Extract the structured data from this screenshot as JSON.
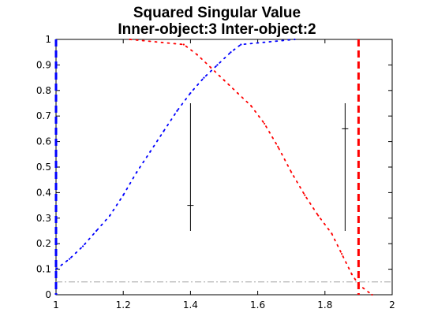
{
  "chart_data": {
    "type": "scatter",
    "title_lines": [
      "Squared Singular Value",
      "Inner-object:3  Inter-object:2"
    ],
    "xlabel": "",
    "ylabel": "",
    "xlim": [
      1,
      2
    ],
    "ylim": [
      0,
      1
    ],
    "x_ticks": [
      1,
      1.2,
      1.4,
      1.6,
      1.8,
      2
    ],
    "x_tick_labels": [
      "1",
      "1.2",
      "1.4",
      "1.6",
      "1.8",
      "2"
    ],
    "y_ticks": [
      0,
      0.1,
      0.2,
      0.3,
      0.4,
      0.5,
      0.6,
      0.7,
      0.8,
      0.9,
      1
    ],
    "y_tick_labels": [
      "0",
      "0.1",
      "0.2",
      "0.3",
      "0.4",
      "0.5",
      "0.6",
      "0.7",
      "0.8",
      "0.9",
      "1"
    ],
    "grid": false,
    "series": [
      {
        "color": "#0000ff",
        "style": "dotted",
        "points": [
          [
            1.0,
            0.1
          ],
          [
            1.04,
            0.14
          ],
          [
            1.08,
            0.19
          ],
          [
            1.12,
            0.25
          ],
          [
            1.16,
            0.31
          ],
          [
            1.2,
            0.39
          ],
          [
            1.24,
            0.48
          ],
          [
            1.28,
            0.56
          ],
          [
            1.32,
            0.64
          ],
          [
            1.36,
            0.72
          ],
          [
            1.4,
            0.79
          ],
          [
            1.44,
            0.85
          ],
          [
            1.48,
            0.9
          ],
          [
            1.52,
            0.95
          ],
          [
            1.55,
            0.98
          ],
          [
            1.71,
            1.0
          ]
        ]
      },
      {
        "color": "#ff0000",
        "style": "dotted",
        "points": [
          [
            1.22,
            1.0
          ],
          [
            1.38,
            0.98
          ],
          [
            1.42,
            0.94
          ],
          [
            1.46,
            0.89
          ],
          [
            1.5,
            0.84
          ],
          [
            1.54,
            0.79
          ],
          [
            1.58,
            0.74
          ],
          [
            1.62,
            0.67
          ],
          [
            1.66,
            0.58
          ],
          [
            1.7,
            0.48
          ],
          [
            1.74,
            0.39
          ],
          [
            1.78,
            0.31
          ],
          [
            1.82,
            0.24
          ],
          [
            1.85,
            0.16
          ],
          [
            1.88,
            0.08
          ],
          [
            1.9,
            0.04
          ],
          [
            1.94,
            0.0
          ]
        ]
      }
    ],
    "error_bars": [
      {
        "x": 1.4,
        "y": 0.35,
        "low": 0.25,
        "high": 0.75
      },
      {
        "x": 1.86,
        "y": 0.65,
        "low": 0.25,
        "high": 0.75
      }
    ],
    "vertical_lines": [
      {
        "x": 1.0,
        "color": "#0000ff",
        "style": "dashed"
      },
      {
        "x": 1.9,
        "color": "#ff0000",
        "style": "dashed"
      }
    ],
    "horizontal_lines": [
      {
        "y": 0.05,
        "color": "#a0a0a0",
        "style": "dash-dot"
      }
    ]
  }
}
